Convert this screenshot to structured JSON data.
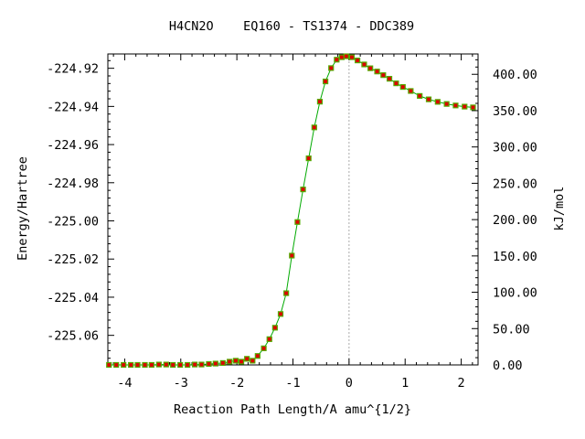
{
  "chart_data": {
    "type": "line",
    "title": "H4CN2O    EQ160 - TS1374 - DDC389",
    "xlabel": "Reaction Path Length/A amu^{1/2}",
    "ylabel": "Energy/Hartree",
    "y2label": "kJ/mol",
    "xlim": [
      -4.3,
      2.3
    ],
    "ylim": [
      -225.0755,
      -224.9125
    ],
    "y2lim": [
      0.0,
      428.0
    ],
    "x_ticks": [
      -4,
      -3,
      -2,
      -1,
      0,
      1,
      2
    ],
    "x_tick_labels": [
      "-4",
      "-3",
      "-2",
      "-1",
      "0",
      "1",
      "2"
    ],
    "y_ticks": [
      -224.92,
      -224.94,
      -224.96,
      -224.98,
      -225.0,
      -225.02,
      -225.04,
      -225.06
    ],
    "y_tick_labels": [
      "-224.92",
      "-224.94",
      "-224.96",
      "-224.98",
      "-225.00",
      "-225.02",
      "-225.04",
      "-225.06"
    ],
    "y2_ticks": [
      0,
      50,
      100,
      150,
      200,
      250,
      300,
      350,
      400
    ],
    "y2_tick_labels": [
      "0.00",
      "50.00",
      "100.00",
      "150.00",
      "200.00",
      "250.00",
      "300.00",
      "350.00",
      "400.00"
    ],
    "ts_x": 0.0,
    "series": [
      {
        "color": "#dd0000",
        "line_color": "#00aa00",
        "x": [
          -4.28,
          -4.15,
          -4.02,
          -3.89,
          -3.77,
          -3.64,
          -3.52,
          -3.39,
          -3.26,
          -3.14,
          -3.01,
          -2.88,
          -2.75,
          -2.63,
          -2.5,
          -2.38,
          -2.25,
          -2.13,
          -2.02,
          -1.92,
          -1.82,
          -1.72,
          -1.63,
          -1.52,
          -1.42,
          -1.32,
          -1.22,
          -1.12,
          -1.02,
          -0.92,
          -0.82,
          -0.72,
          -0.62,
          -0.52,
          -0.42,
          -0.32,
          -0.22,
          -0.13,
          -0.05,
          0.05,
          0.15,
          0.27,
          0.38,
          0.5,
          0.61,
          0.72,
          0.84,
          0.96,
          1.1,
          1.26,
          1.42,
          1.58,
          1.74,
          1.9,
          2.06,
          2.21
        ],
        "y": [
          -225.0755,
          -225.0755,
          -225.0755,
          -225.0755,
          -225.0755,
          -225.0755,
          -225.0755,
          -225.0753,
          -225.0753,
          -225.0755,
          -225.0755,
          -225.0755,
          -225.0753,
          -225.0753,
          -225.075,
          -225.0748,
          -225.0745,
          -225.0738,
          -225.0733,
          -225.0738,
          -225.0723,
          -225.0733,
          -225.0708,
          -225.0668,
          -225.062,
          -225.056,
          -225.0488,
          -225.0379,
          -225.0182,
          -225.0006,
          -224.9835,
          -224.9672,
          -224.951,
          -224.9375,
          -224.9269,
          -224.9199,
          -224.9155,
          -224.9142,
          -224.9137,
          -224.9142,
          -224.9159,
          -224.918,
          -224.92,
          -224.9217,
          -224.9236,
          -224.9255,
          -224.9279,
          -224.9298,
          -224.9319,
          -224.9345,
          -224.9363,
          -224.9376,
          -224.9387,
          -224.9395,
          -224.9401,
          -224.9405
        ]
      }
    ]
  }
}
